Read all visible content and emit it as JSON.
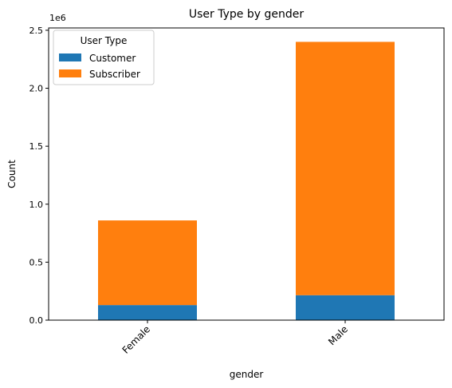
{
  "chart_data": {
    "type": "bar",
    "stacked": true,
    "title": "User Type by gender",
    "xlabel": "gender",
    "ylabel": "Count",
    "y_offset_label": "1e6",
    "categories": [
      "Female",
      "Male"
    ],
    "series": [
      {
        "name": "Customer",
        "color": "#1f77b4",
        "values": [
          130000,
          215000
        ]
      },
      {
        "name": "Subscriber",
        "color": "#ff7f0e",
        "values": [
          730000,
          2185000
        ]
      }
    ],
    "ylim": [
      0,
      2520000
    ],
    "yticks": [
      {
        "value": 0,
        "label": "0.0"
      },
      {
        "value": 500000,
        "label": "0.5"
      },
      {
        "value": 1000000,
        "label": "1.0"
      },
      {
        "value": 1500000,
        "label": "1.5"
      },
      {
        "value": 2000000,
        "label": "2.0"
      },
      {
        "value": 2500000,
        "label": "2.5"
      }
    ],
    "grid": false,
    "legend": {
      "title": "User Type",
      "position": "top-left"
    },
    "xtick_rotation": 45
  }
}
